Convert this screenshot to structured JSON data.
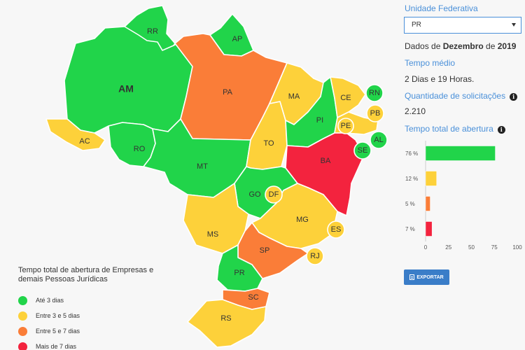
{
  "colors": {
    "green": "#21d44a",
    "yellow": "#fdd13a",
    "orange": "#fa7d38",
    "red": "#f3233e",
    "accent": "#4a90d9",
    "button": "#3a7dc8"
  },
  "map": {
    "states": [
      {
        "id": "AM",
        "label": "AM",
        "category": "green"
      },
      {
        "id": "RR",
        "label": "RR",
        "category": "green"
      },
      {
        "id": "AP",
        "label": "AP",
        "category": "green"
      },
      {
        "id": "PA",
        "label": "PA",
        "category": "orange"
      },
      {
        "id": "AC",
        "label": "AC",
        "category": "yellow"
      },
      {
        "id": "RO",
        "label": "RO",
        "category": "green"
      },
      {
        "id": "MT",
        "label": "MT",
        "category": "green"
      },
      {
        "id": "TO",
        "label": "TO",
        "category": "yellow"
      },
      {
        "id": "MA",
        "label": "MA",
        "category": "yellow"
      },
      {
        "id": "PI",
        "label": "PI",
        "category": "green"
      },
      {
        "id": "CE",
        "label": "CE",
        "category": "yellow"
      },
      {
        "id": "RN",
        "label": "RN",
        "category": "green"
      },
      {
        "id": "PB",
        "label": "PB",
        "category": "yellow"
      },
      {
        "id": "PE",
        "label": "PE",
        "category": "yellow"
      },
      {
        "id": "AL",
        "label": "AL",
        "category": "green"
      },
      {
        "id": "SE",
        "label": "SE",
        "category": "green"
      },
      {
        "id": "BA",
        "label": "BA",
        "category": "red"
      },
      {
        "id": "GO",
        "label": "GO",
        "category": "green"
      },
      {
        "id": "DF",
        "label": "DF",
        "category": "yellow"
      },
      {
        "id": "MS",
        "label": "MS",
        "category": "yellow"
      },
      {
        "id": "MG",
        "label": "MG",
        "category": "yellow"
      },
      {
        "id": "ES",
        "label": "ES",
        "category": "yellow"
      },
      {
        "id": "RJ",
        "label": "RJ",
        "category": "yellow"
      },
      {
        "id": "SP",
        "label": "SP",
        "category": "orange"
      },
      {
        "id": "PR",
        "label": "PR",
        "category": "green"
      },
      {
        "id": "SC",
        "label": "SC",
        "category": "orange"
      },
      {
        "id": "RS",
        "label": "RS",
        "category": "yellow"
      }
    ]
  },
  "legend": {
    "title": "Tempo total de abertura de Empresas e demais Pessoas Jurídicas",
    "items": [
      {
        "label": "Até 3 dias",
        "color": "#21d44a"
      },
      {
        "label": "Entre 3 e 5 dias",
        "color": "#fdd13a"
      },
      {
        "label": "Entre 5 e 7 dias",
        "color": "#fa7d38"
      },
      {
        "label": "Mais de 7 dias",
        "color": "#f3233e"
      }
    ]
  },
  "panel": {
    "uf_label": "Unidade Federativa",
    "uf_value": "PR",
    "dados_prefix": "Dados de ",
    "dados_month": "Dezembro",
    "dados_mid": " de ",
    "dados_year": "2019",
    "tempo_medio_label": "Tempo médio",
    "tempo_medio_value": "2 Dias e 19 Horas.",
    "quantidade_label": "Quantidade de solicitações",
    "quantidade_value": "2.210",
    "tempo_total_label": "Tempo total de abertura",
    "info_icon": "i",
    "export_label": "EXPORTAR"
  },
  "chart_data": {
    "type": "bar",
    "orientation": "horizontal",
    "categories": [
      "76 %",
      "12 %",
      "5 %",
      "7 %"
    ],
    "values": [
      76,
      12,
      5,
      7
    ],
    "colors": [
      "#21d44a",
      "#fdd13a",
      "#fa7d38",
      "#f3233e"
    ],
    "xlim": [
      0,
      100
    ],
    "xticks": [
      0,
      25,
      50,
      75,
      100
    ]
  }
}
